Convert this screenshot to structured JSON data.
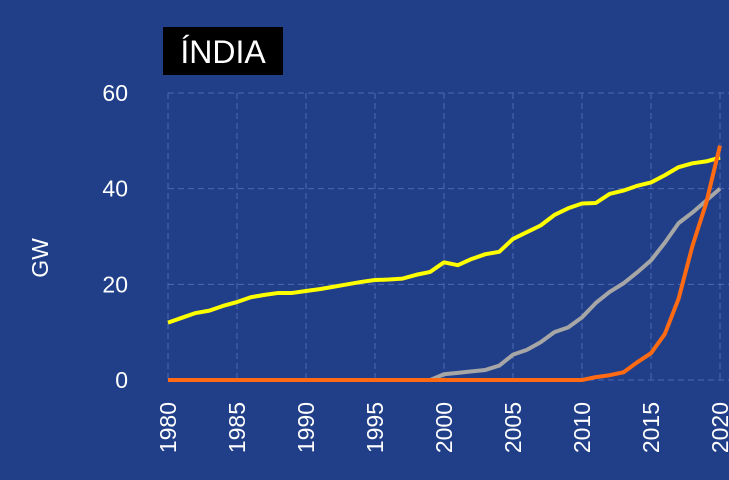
{
  "chart_data": {
    "type": "line",
    "title": "ÍNDIA",
    "y_label": "GW",
    "x": [
      1980,
      1981,
      1982,
      1983,
      1984,
      1985,
      1986,
      1987,
      1988,
      1989,
      1990,
      1991,
      1992,
      1993,
      1994,
      1995,
      1996,
      1997,
      1998,
      1999,
      2000,
      2001,
      2002,
      2003,
      2004,
      2005,
      2006,
      2007,
      2008,
      2009,
      2010,
      2011,
      2012,
      2013,
      2014,
      2015,
      2016,
      2017,
      2018,
      2019,
      2020
    ],
    "series": [
      {
        "color": "#ffff00",
        "values": [
          12,
          13,
          14,
          14.5,
          15.5,
          16.3,
          17.3,
          17.8,
          18.2,
          18.2,
          18.6,
          19,
          19.5,
          20,
          20.5,
          20.9,
          21,
          21.2,
          22,
          22.6,
          24.6,
          24,
          25.3,
          26.3,
          26.8,
          29.5,
          30.9,
          32.3,
          34.5,
          35.9,
          36.9,
          37,
          38.9,
          39.6,
          40.6,
          41.3,
          42.8,
          44.5,
          45.3,
          45.7,
          46.5
        ]
      },
      {
        "color": "#a6a6a6",
        "values": [
          0,
          0,
          0,
          0,
          0,
          0,
          0,
          0,
          0,
          0,
          0,
          0,
          0,
          0,
          0,
          0,
          0,
          0,
          0,
          0,
          1.2,
          1.5,
          1.8,
          2.1,
          3,
          5.3,
          6.3,
          7.9,
          10,
          11,
          13.1,
          16.1,
          18.4,
          20.2,
          22.5,
          25,
          28.7,
          32.8,
          35,
          37.5,
          40
        ]
      },
      {
        "color": "#ff6a13",
        "values": [
          0,
          0,
          0,
          0,
          0,
          0,
          0,
          0,
          0,
          0,
          0,
          0,
          0,
          0,
          0,
          0,
          0,
          0,
          0,
          0,
          0,
          0,
          0,
          0,
          0,
          0,
          0,
          0,
          0,
          0,
          0,
          0.6,
          1,
          1.6,
          3.7,
          5.6,
          9.6,
          17,
          28,
          37,
          49
        ]
      }
    ],
    "xlim": [
      1980,
      2021
    ],
    "xticks": [
      1980,
      1985,
      1990,
      1995,
      2000,
      2005,
      2010,
      2015,
      2020
    ],
    "ylim": [
      0,
      60
    ],
    "yticks": [
      0,
      20,
      40,
      60
    ],
    "grid": true
  }
}
